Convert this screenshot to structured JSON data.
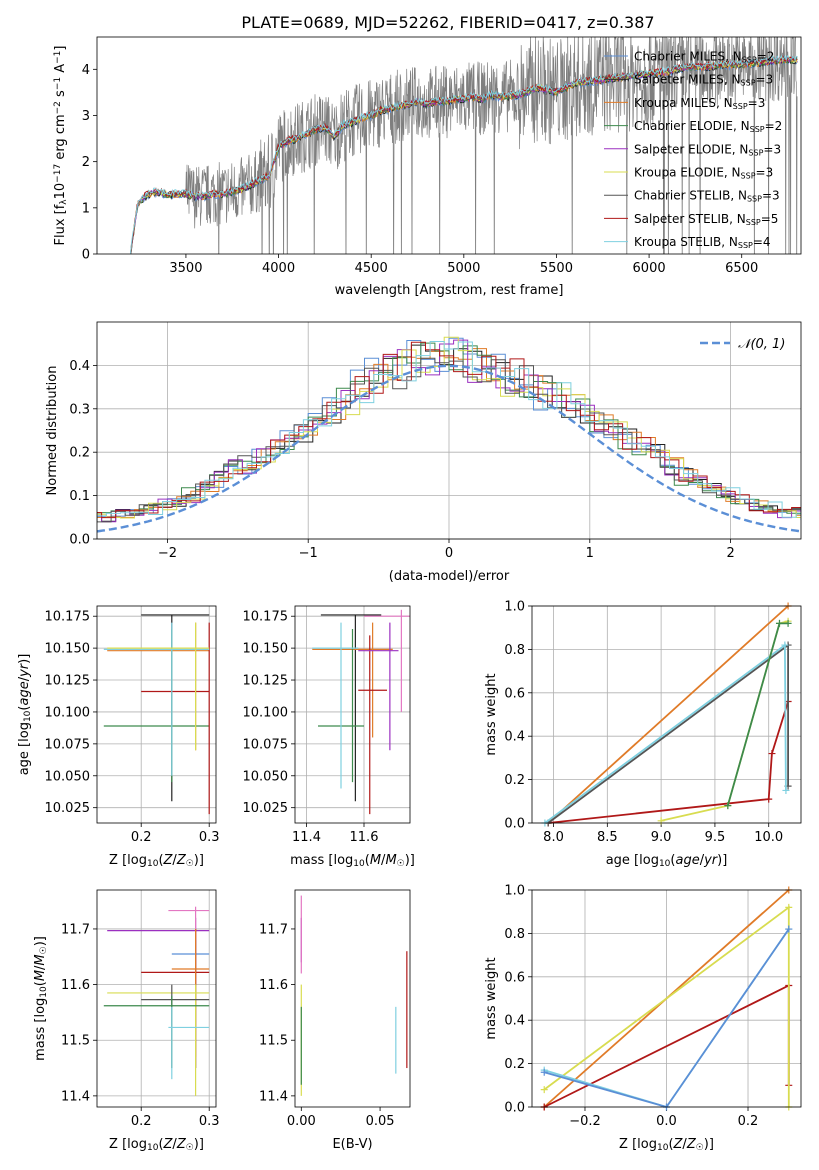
{
  "figure": {
    "title": "PLATE=0689, MJD=52262, FIBERID=0417, z=0.387"
  },
  "colors": {
    "series": [
      "#5b8fd6",
      "#222222",
      "#e07b28",
      "#3d8a4d",
      "#9b30c0",
      "#d8dc50",
      "#555555",
      "#b01818",
      "#7fd0e0"
    ],
    "data_gray": "#7f7f7f",
    "normal_curve": "#5b8fd6",
    "pink": "#e377c2"
  },
  "chart_data": [
    {
      "id": "spectrum",
      "type": "line",
      "title": "PLATE=0689, MJD=52262, FIBERID=0417, z=0.387",
      "xlabel": "wavelength [Angstrom, rest frame]",
      "ylabel_parts": [
        "Flux [f",
        "λ",
        "10",
        "−17",
        " erg cm",
        "−2",
        " s",
        "−1",
        " A",
        "−1",
        "]"
      ],
      "xlim": [
        3020,
        6820
      ],
      "ylim": [
        0,
        4.7
      ],
      "xticks": [
        3500,
        4000,
        4500,
        5000,
        5500,
        6000,
        6500
      ],
      "yticks": [
        0,
        1,
        2,
        3,
        4
      ],
      "grid": false,
      "legend_position": "upper-right",
      "legend": [
        {
          "name": "Chabrier MILES",
          "nssp": "2"
        },
        {
          "name": "Salpeter MILES",
          "nssp": "3"
        },
        {
          "name": "Kroupa MILES",
          "nssp": "3"
        },
        {
          "name": "Chabrier ELODIE",
          "nssp": "2"
        },
        {
          "name": "Salpeter ELODIE",
          "nssp": "3"
        },
        {
          "name": "Kroupa ELODIE",
          "nssp": "3"
        },
        {
          "name": "Chabrier STELIB",
          "nssp": "3"
        },
        {
          "name": "Salpeter STELIB",
          "nssp": "5"
        },
        {
          "name": "Kroupa STELIB",
          "nssp": "4"
        }
      ],
      "model_continuum": {
        "x": [
          3200,
          3240,
          3280,
          3300,
          3350,
          3400,
          3450,
          3500,
          3550,
          3600,
          3650,
          3700,
          3750,
          3800,
          3850,
          3900,
          3950,
          4000,
          4050,
          4100,
          4150,
          4200,
          4250,
          4300,
          4350,
          4400,
          4450,
          4500,
          4550,
          4600,
          4650,
          4700,
          4750,
          4800,
          4850,
          4900,
          4950,
          5000,
          5050,
          5100,
          5150,
          5200,
          5300,
          5400,
          5500,
          5600,
          5700,
          5800,
          5900,
          6000,
          6100,
          6200,
          6300,
          6400,
          6500,
          6600,
          6700,
          6800
        ],
        "y": [
          0.0,
          1.1,
          1.25,
          1.3,
          1.35,
          1.28,
          1.3,
          1.3,
          1.25,
          1.25,
          1.3,
          1.3,
          1.35,
          1.4,
          1.5,
          1.6,
          1.7,
          2.3,
          2.45,
          2.5,
          2.6,
          2.7,
          2.75,
          2.55,
          2.8,
          2.85,
          2.95,
          3.0,
          3.1,
          3.15,
          3.2,
          3.25,
          3.3,
          3.25,
          3.3,
          3.3,
          3.35,
          3.35,
          3.4,
          3.35,
          3.45,
          3.4,
          3.45,
          3.6,
          3.5,
          3.7,
          3.75,
          3.8,
          3.85,
          3.9,
          3.95,
          4.05,
          4.05,
          4.1,
          4.1,
          4.15,
          4.2,
          4.2
        ]
      },
      "observed_flux": {
        "x_range": [
          3200,
          6800
        ],
        "color": "gray",
        "noisy": true
      }
    },
    {
      "id": "residuals",
      "type": "histogram",
      "xlabel": "(data-model)/error",
      "ylabel": "Normed distribution",
      "xlim": [
        -2.5,
        2.5
      ],
      "ylim": [
        0,
        0.5
      ],
      "xticks": [
        -2,
        -1,
        0,
        1,
        2
      ],
      "yticks": [
        0.0,
        0.1,
        0.2,
        0.3,
        0.4
      ],
      "grid": true,
      "legend": {
        "label": "𝒩(0, 1)",
        "position": "upper-right"
      },
      "bin_width": 0.1,
      "histogram_mean": [
        0.03,
        0.03,
        0.04,
        0.04,
        0.05,
        0.05,
        0.06,
        0.06,
        0.07,
        0.08,
        0.09,
        0.1,
        0.12,
        0.14,
        0.16,
        0.17,
        0.19,
        0.21,
        0.23,
        0.25,
        0.27,
        0.3,
        0.32,
        0.35,
        0.37,
        0.39,
        0.4,
        0.41,
        0.42,
        0.43,
        0.42,
        0.41,
        0.39,
        0.38,
        0.37,
        0.36,
        0.34,
        0.33,
        0.31,
        0.29,
        0.27,
        0.25,
        0.23,
        0.21,
        0.19,
        0.17,
        0.15,
        0.13,
        0.12,
        0.1,
        0.09,
        0.08,
        0.07,
        0.06,
        0.06,
        0.05,
        0.05,
        0.04,
        0.04,
        0.04
      ]
    },
    {
      "id": "age-vs-Z",
      "type": "errorbar",
      "xlabel": "Z [log10(Z/Z☉)]",
      "ylabel": "age  [log10(age/yr)]",
      "xlim": [
        0.135,
        0.31
      ],
      "ylim": [
        10.013,
        10.183
      ],
      "xticks": [
        0.2,
        0.3
      ],
      "yticks": [
        10.025,
        10.05,
        10.075,
        10.1,
        10.125,
        10.15,
        10.175
      ],
      "grid": true,
      "points": [
        {
          "x": 0.245,
          "y": 10.176,
          "xlo": 0.2,
          "xhi": 0.3,
          "ylo": 10.03,
          "yhi": 10.176,
          "color": 1
        },
        {
          "x": 0.28,
          "y": 10.148,
          "xlo": 0.15,
          "xhi": 0.3,
          "ylo": 10.07,
          "yhi": 10.17,
          "color": 2
        },
        {
          "x": 0.245,
          "y": 10.089,
          "xlo": 0.145,
          "xhi": 0.3,
          "ylo": 10.045,
          "yhi": 10.165,
          "color": 3
        },
        {
          "x": 0.3,
          "y": 10.116,
          "xlo": 0.2,
          "xhi": 0.3,
          "ylo": 10.02,
          "yhi": 10.17,
          "color": 7
        },
        {
          "x": 0.245,
          "y": 10.149,
          "xlo": 0.145,
          "xhi": 0.3,
          "ylo": 10.05,
          "yhi": 10.17,
          "color": 8
        },
        {
          "x": 0.28,
          "y": 10.15,
          "xlo": 0.15,
          "xhi": 0.3,
          "ylo": 10.07,
          "yhi": 10.17,
          "color": 5
        }
      ]
    },
    {
      "id": "age-vs-mass",
      "type": "errorbar",
      "xlabel": "mass [log10(M/M☉)]",
      "ylabel": "",
      "xlim": [
        11.36,
        11.76
      ],
      "ylim": [
        10.013,
        10.183
      ],
      "xticks": [
        11.4,
        11.6
      ],
      "yticks": [
        10.025,
        10.05,
        10.075,
        10.1,
        10.125,
        10.15,
        10.175
      ],
      "grid": true,
      "points": [
        {
          "x": 11.57,
          "y": 10.176,
          "xlo": 11.45,
          "xhi": 11.66,
          "ylo": 10.03,
          "yhi": 10.176,
          "color": 1
        },
        {
          "x": 11.63,
          "y": 10.149,
          "xlo": 11.42,
          "xhi": 11.7,
          "ylo": 10.08,
          "yhi": 10.17,
          "color": 2
        },
        {
          "x": 11.56,
          "y": 10.089,
          "xlo": 11.44,
          "xhi": 11.6,
          "ylo": 10.045,
          "yhi": 10.165,
          "color": 3
        },
        {
          "x": 11.62,
          "y": 10.117,
          "xlo": 11.58,
          "xhi": 11.68,
          "ylo": 10.02,
          "yhi": 10.16,
          "color": 7
        },
        {
          "x": 11.69,
          "y": 10.148,
          "xlo": 11.58,
          "xhi": 11.72,
          "ylo": 10.07,
          "yhi": 10.17,
          "color": 4
        },
        {
          "x": 11.52,
          "y": 10.15,
          "xlo": 11.42,
          "xhi": 11.58,
          "ylo": 10.04,
          "yhi": 10.17,
          "color": 8
        },
        {
          "x": 11.73,
          "y": 10.175,
          "xlo": 11.6,
          "xhi": 11.76,
          "ylo": 10.1,
          "yhi": 10.18,
          "color": 9
        }
      ]
    },
    {
      "id": "cumulative-mass-vs-age",
      "type": "line",
      "xlabel": "age  [log10(age/yr)]",
      "ylabel": "mass weight",
      "xlim": [
        7.8,
        10.3
      ],
      "ylim": [
        0,
        1
      ],
      "xticks": [
        8.0,
        8.5,
        9.0,
        9.5,
        10.0
      ],
      "yticks": [
        0.0,
        0.2,
        0.4,
        0.6,
        0.8,
        1.0
      ],
      "grid": true,
      "series": [
        {
          "color": 2,
          "x": [
            7.95,
            10.18
          ],
          "y": [
            0.0,
            1.0
          ]
        },
        {
          "color": 7,
          "x": [
            7.95,
            10.0,
            10.03,
            10.18
          ],
          "y": [
            0.0,
            0.11,
            0.32,
            0.56
          ]
        },
        {
          "color": 6,
          "x": [
            7.95,
            10.18,
            10.18
          ],
          "y": [
            0.0,
            0.82,
            0.17
          ]
        },
        {
          "color": 8,
          "x": [
            7.92,
            10.15,
            10.16
          ],
          "y": [
            0.0,
            0.82,
            0.15
          ]
        },
        {
          "color": 5,
          "x": [
            9.0,
            9.62,
            10.1,
            10.18
          ],
          "y": [
            0.01,
            0.08,
            0.92,
            0.93
          ]
        },
        {
          "color": 3,
          "x": [
            9.62,
            10.1,
            10.18
          ],
          "y": [
            0.08,
            0.92,
            0.92
          ]
        }
      ]
    },
    {
      "id": "mass-vs-Z",
      "type": "errorbar",
      "xlabel": "Z [log10(Z/Z☉)]",
      "ylabel": "mass [log10(M/M☉)]",
      "xlim": [
        0.135,
        0.31
      ],
      "ylim": [
        11.38,
        11.77
      ],
      "xticks": [
        0.2,
        0.3
      ],
      "yticks": [
        11.4,
        11.5,
        11.6,
        11.7
      ],
      "grid": true,
      "points": [
        {
          "x": 0.28,
          "y": 11.697,
          "xlo": 0.15,
          "xhi": 0.3,
          "ylo": 11.6,
          "yhi": 11.72,
          "color": 4
        },
        {
          "x": 0.28,
          "y": 11.733,
          "xlo": 0.24,
          "xhi": 0.3,
          "ylo": 11.6,
          "yhi": 11.74,
          "color": 9
        },
        {
          "x": 0.28,
          "y": 11.655,
          "xlo": 0.245,
          "xhi": 0.3,
          "ylo": 11.45,
          "yhi": 11.68,
          "color": 0
        },
        {
          "x": 0.28,
          "y": 11.622,
          "xlo": 0.2,
          "xhi": 0.3,
          "ylo": 11.45,
          "yhi": 11.7,
          "color": 7
        },
        {
          "x": 0.28,
          "y": 11.628,
          "xlo": 0.245,
          "xhi": 0.3,
          "ylo": 11.47,
          "yhi": 11.7,
          "color": 2
        },
        {
          "x": 0.28,
          "y": 11.585,
          "xlo": 0.15,
          "xhi": 0.3,
          "ylo": 11.4,
          "yhi": 11.6,
          "color": 5
        },
        {
          "x": 0.245,
          "y": 11.573,
          "xlo": 0.2,
          "xhi": 0.3,
          "ylo": 11.45,
          "yhi": 11.6,
          "color": 6
        },
        {
          "x": 0.245,
          "y": 11.562,
          "xlo": 0.145,
          "xhi": 0.3,
          "ylo": 11.45,
          "yhi": 11.58,
          "color": 3
        },
        {
          "x": 0.245,
          "y": 11.523,
          "xlo": 0.24,
          "xhi": 0.3,
          "ylo": 11.43,
          "yhi": 11.56,
          "color": 8
        }
      ]
    },
    {
      "id": "mass-vs-EBV",
      "type": "errorbar",
      "xlabel": "E(B-V)",
      "ylabel": "",
      "xlim": [
        -0.004,
        0.069
      ],
      "ylim": [
        11.38,
        11.77
      ],
      "xticks": [
        0.0,
        0.05
      ],
      "yticks": [
        11.4,
        11.5,
        11.6,
        11.7
      ],
      "grid": false,
      "points": [
        {
          "x": 0.0,
          "y": 11.7,
          "xlo": 0.0,
          "xhi": 0.0,
          "ylo": 11.64,
          "yhi": 11.72,
          "color": 4
        },
        {
          "x": 0.0,
          "y": 11.73,
          "xlo": 0.0,
          "xhi": 0.0,
          "ylo": 11.62,
          "yhi": 11.76,
          "color": 9
        },
        {
          "x": 0.0,
          "y": 11.55,
          "xlo": 0.0,
          "xhi": 0.0,
          "ylo": 11.4,
          "yhi": 11.6,
          "color": 5
        },
        {
          "x": 0.0,
          "y": 11.52,
          "xlo": 0.0,
          "xhi": 0.0,
          "ylo": 11.42,
          "yhi": 11.56,
          "color": 3
        },
        {
          "x": 0.06,
          "y": 11.5,
          "xlo": 0.06,
          "xhi": 0.06,
          "ylo": 11.44,
          "yhi": 11.56,
          "color": 8
        },
        {
          "x": 0.067,
          "y": 11.56,
          "xlo": 0.067,
          "xhi": 0.067,
          "ylo": 11.45,
          "yhi": 11.66,
          "color": 7
        }
      ]
    },
    {
      "id": "cumulative-mass-vs-Z",
      "type": "line",
      "xlabel": "Z [log10(Z/Z☉)]",
      "ylabel": "mass weight",
      "xlim": [
        -0.33,
        0.33
      ],
      "ylim": [
        0,
        1
      ],
      "xticks": [
        -0.2,
        0.0,
        0.2
      ],
      "yticks": [
        0.0,
        0.2,
        0.4,
        0.6,
        0.8,
        1.0
      ],
      "grid": true,
      "series": [
        {
          "color": 2,
          "x": [
            -0.3,
            0.3
          ],
          "y": [
            0.0,
            1.0
          ]
        },
        {
          "color": 7,
          "x": [
            -0.3,
            0.3,
            0.3
          ],
          "y": [
            0.0,
            0.56,
            0.1
          ]
        },
        {
          "color": 5,
          "x": [
            -0.3,
            0.3,
            0.3
          ],
          "y": [
            0.08,
            0.92,
            0.0
          ]
        },
        {
          "color": 8,
          "x": [
            -0.3,
            0.0,
            0.3
          ],
          "y": [
            0.17,
            0.0,
            0.82
          ]
        },
        {
          "color": 0,
          "x": [
            -0.3,
            0.0,
            0.3
          ],
          "y": [
            0.16,
            0.0,
            0.82
          ]
        }
      ]
    }
  ]
}
